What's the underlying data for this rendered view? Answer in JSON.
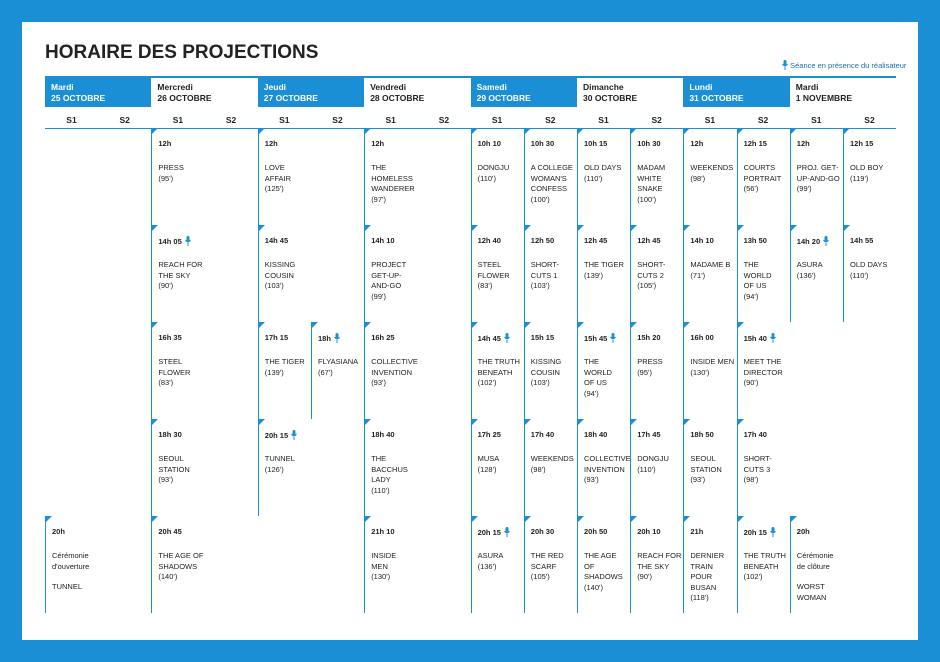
{
  "header": {
    "title": "HORAIRE DES PROJECTIONS",
    "legend": "Séance en présence du réalisateur"
  },
  "screens": [
    "S1",
    "S2"
  ],
  "days": [
    {
      "weekday": "Mardi",
      "date": "25 OCTOBRE",
      "slots": [
        [
          null,
          null
        ],
        [
          null,
          null
        ],
        [
          null,
          null
        ],
        [
          null,
          null
        ],
        [
          {
            "time": "20h",
            "title": [
              "Cérémonie",
              "d'ouverture"
            ],
            "extra": [
              "TUNNEL"
            ]
          },
          null
        ]
      ]
    },
    {
      "weekday": "Mercredi",
      "date": "26 OCTOBRE",
      "slots": [
        [
          {
            "time": "12h",
            "title": [
              "PRESS"
            ],
            "duration": "(95')"
          },
          null
        ],
        [
          {
            "time": "14h 05",
            "director": true,
            "title": [
              "REACH FOR",
              "THE SKY"
            ],
            "duration": "(90')"
          },
          null
        ],
        [
          {
            "time": "16h 35",
            "title": [
              "STEEL",
              "FLOWER"
            ],
            "duration": "(83')"
          },
          null
        ],
        [
          {
            "time": "18h 30",
            "title": [
              "SEOUL",
              "STATION"
            ],
            "duration": "(93')"
          },
          null
        ],
        [
          {
            "time": "20h 45",
            "title": [
              "THE AGE OF",
              "SHADOWS"
            ],
            "duration": "(140')"
          },
          null
        ]
      ]
    },
    {
      "weekday": "Jeudi",
      "date": "27 OCTOBRE",
      "slots": [
        [
          {
            "time": "12h",
            "title": [
              "LOVE",
              "AFFAIR"
            ],
            "duration": "(125')"
          },
          null
        ],
        [
          {
            "time": "14h 45",
            "title": [
              "KISSING",
              "COUSIN"
            ],
            "duration": "(103')"
          },
          null
        ],
        [
          {
            "time": "17h 15",
            "title": [
              "THE TIGER"
            ],
            "duration": "(139')"
          },
          {
            "time": "18h",
            "director": true,
            "title": [
              "FLYASIANA"
            ],
            "duration": "(67')"
          }
        ],
        [
          {
            "time": "20h 15",
            "director": true,
            "title": [
              "TUNNEL"
            ],
            "duration": "(126')"
          },
          null
        ],
        [
          null,
          null
        ]
      ]
    },
    {
      "weekday": "Vendredi",
      "date": "28 OCTOBRE",
      "slots": [
        [
          {
            "time": "12h",
            "title": [
              "THE",
              "HOMELESS",
              "WANDERER"
            ],
            "duration": "(97')"
          },
          null
        ],
        [
          {
            "time": "14h 10",
            "title": [
              "PROJECT",
              "GET-UP-",
              "AND-GO"
            ],
            "duration": "(99')"
          },
          null
        ],
        [
          {
            "time": "16h 25",
            "title": [
              "COLLECTIVE",
              "INVENTION"
            ],
            "duration": "(93')"
          },
          null
        ],
        [
          {
            "time": "18h 40",
            "title": [
              "THE",
              "BACCHUS",
              "LADY"
            ],
            "duration": "(110')"
          },
          null
        ],
        [
          {
            "time": "21h 10",
            "title": [
              "INSIDE",
              "MEN"
            ],
            "duration": "(130')"
          },
          null
        ]
      ]
    },
    {
      "weekday": "Samedi",
      "date": "29 OCTOBRE",
      "slots": [
        [
          {
            "time": "10h 10",
            "title": [
              "DONGJU"
            ],
            "duration": "(110')"
          },
          {
            "time": "10h 30",
            "title": [
              "A COLLEGE",
              "WOMAN'S",
              "CONFESS"
            ],
            "duration": "(100')"
          }
        ],
        [
          {
            "time": "12h 40",
            "title": [
              "STEEL",
              "FLOWER"
            ],
            "duration": "(83')"
          },
          {
            "time": "12h 50",
            "title": [
              "SHORT-",
              "CUTS 1"
            ],
            "duration": "(103')"
          }
        ],
        [
          {
            "time": "14h 45",
            "director": true,
            "title": [
              "THE TRUTH",
              "BENEATH"
            ],
            "duration": "(102')"
          },
          {
            "time": "15h 15",
            "title": [
              "KISSING",
              "COUSIN"
            ],
            "duration": "(103')"
          }
        ],
        [
          {
            "time": "17h 25",
            "title": [
              "MUSA"
            ],
            "duration": "(128')"
          },
          {
            "time": "17h 40",
            "title": [
              "WEEKENDS"
            ],
            "duration": "(98')"
          }
        ],
        [
          {
            "time": "20h 15",
            "director": true,
            "title": [
              "ASURA"
            ],
            "duration": "(136')"
          },
          {
            "time": "20h 30",
            "title": [
              "THE RED",
              "SCARF"
            ],
            "duration": "(105')"
          }
        ]
      ]
    },
    {
      "weekday": "Dimanche",
      "date": "30 OCTOBRE",
      "slots": [
        [
          {
            "time": "10h 15",
            "title": [
              "OLD DAYS"
            ],
            "duration": "(110')"
          },
          {
            "time": "10h 30",
            "title": [
              "MADAM",
              "WHITE",
              "SNAKE"
            ],
            "duration": "(100')"
          }
        ],
        [
          {
            "time": "12h 45",
            "title": [
              "THE TIGER"
            ],
            "duration": "(139')"
          },
          {
            "time": "12h 45",
            "title": [
              "SHORT-",
              "CUTS 2"
            ],
            "duration": "(105')"
          }
        ],
        [
          {
            "time": "15h 45",
            "director": true,
            "title": [
              "THE",
              "WORLD",
              "OF US"
            ],
            "duration": "(94')"
          },
          {
            "time": "15h 20",
            "title": [
              "PRESS"
            ],
            "duration": "(95')"
          }
        ],
        [
          {
            "time": "18h 40",
            "title": [
              "COLLECTIVE",
              "INVENTION"
            ],
            "duration": "(93')"
          },
          {
            "time": "17h 45",
            "title": [
              "DONGJU"
            ],
            "duration": "(110')"
          }
        ],
        [
          {
            "time": "20h 50",
            "title": [
              "THE AGE",
              "OF",
              "SHADOWS"
            ],
            "duration": "(140')"
          },
          {
            "time": "20h 10",
            "title": [
              "REACH FOR",
              "THE SKY"
            ],
            "duration": "(90')"
          }
        ]
      ]
    },
    {
      "weekday": "Lundi",
      "date": "31 OCTOBRE",
      "slots": [
        [
          {
            "time": "12h",
            "title": [
              "WEEKENDS"
            ],
            "duration": "(98')"
          },
          {
            "time": "12h 15",
            "title": [
              "COURTS",
              "PORTRAIT"
            ],
            "duration": "(56')"
          }
        ],
        [
          {
            "time": "14h 10",
            "title": [
              "MADAME B"
            ],
            "duration": "(71')"
          },
          {
            "time": "13h 50",
            "title": [
              "THE",
              "WORLD",
              "OF US"
            ],
            "duration": "(94')"
          }
        ],
        [
          {
            "time": "16h 00",
            "title": [
              "INSIDE MEN"
            ],
            "duration": "(130')"
          },
          {
            "time": "15h 40",
            "director": true,
            "title": [
              "MEET THE",
              "DIRECTOR"
            ],
            "duration": "(90')"
          }
        ],
        [
          {
            "time": "18h 50",
            "title": [
              "SEOUL",
              "STATION"
            ],
            "duration": "(93')"
          },
          {
            "time": "17h 40",
            "title": [
              "SHORT-",
              "CUTS 3"
            ],
            "duration": "(98')"
          }
        ],
        [
          {
            "time": "21h",
            "title": [
              "DERNIER",
              "TRAIN",
              "POUR",
              "BUSAN"
            ],
            "duration": "(118')"
          },
          {
            "time": "20h 15",
            "director": true,
            "title": [
              "THE TRUTH",
              "BENEATH"
            ],
            "duration": "(102')"
          }
        ]
      ]
    },
    {
      "weekday": "Mardi",
      "date": "1 NOVEMBRE",
      "slots": [
        [
          {
            "time": "12h",
            "title": [
              "PROJ. GET-",
              "UP-AND-GO"
            ],
            "duration": "(99')"
          },
          {
            "time": "12h 15",
            "title": [
              "OLD BOY"
            ],
            "duration": "(119')"
          }
        ],
        [
          {
            "time": "14h 20",
            "director": true,
            "title": [
              "ASURA"
            ],
            "duration": "(136')"
          },
          {
            "time": "14h 55",
            "title": [
              "OLD DAYS"
            ],
            "duration": "(110')"
          }
        ],
        [
          null,
          null
        ],
        [
          null,
          null
        ],
        [
          {
            "time": "20h",
            "title": [
              "Cérémonie",
              "de clôture"
            ],
            "extra": [
              "WORST",
              "WOMAN"
            ]
          },
          null
        ]
      ]
    }
  ]
}
